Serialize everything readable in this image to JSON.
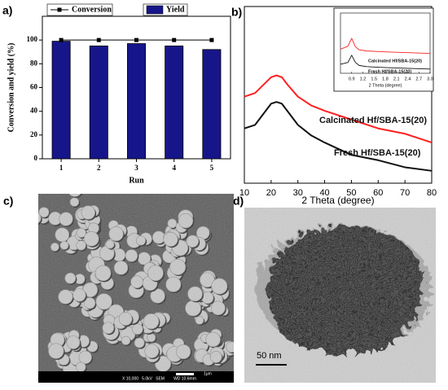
{
  "chart_data": [
    {
      "type": "bar",
      "label": "a)",
      "xlabel": "Run",
      "ylabel": "Conversion and yield (%)",
      "categories": [
        "1",
        "2",
        "3",
        "4",
        "5"
      ],
      "ylim": [
        0,
        120
      ],
      "yticks": [
        0,
        20,
        40,
        60,
        80,
        100
      ],
      "series": [
        {
          "name": "Conversion",
          "type": "line",
          "color": "#000000",
          "marker": "square",
          "values": [
            100,
            100,
            100,
            100,
            100
          ]
        },
        {
          "name": "Yield",
          "type": "bar",
          "color": "#16168a",
          "values": [
            99,
            95,
            97,
            95,
            92
          ]
        }
      ]
    },
    {
      "type": "line",
      "label": "b)",
      "xlabel": "2 Theta (degree)",
      "xlim": [
        10,
        80
      ],
      "xticks": [
        10,
        20,
        30,
        40,
        50,
        60,
        70,
        80
      ],
      "ylim": [
        0,
        100
      ],
      "x": [
        10,
        14,
        18,
        20,
        22,
        24,
        26,
        30,
        35,
        40,
        50,
        60,
        70,
        80
      ],
      "series": [
        {
          "name": "Calcinated Hf/SBA-15(20)",
          "color": "#ff2020",
          "values": [
            49,
            51,
            57,
            60,
            61,
            60,
            56,
            49,
            44,
            41,
            36,
            31,
            28,
            23
          ]
        },
        {
          "name": "Fresh Hf/SBA-15(20)",
          "color": "#111111",
          "values": [
            31,
            33,
            41,
            45,
            46,
            45,
            41,
            33,
            27,
            23,
            16,
            13,
            9,
            7
          ]
        }
      ]
    },
    {
      "type": "line",
      "xlabel": "2 Theta (degree)",
      "xlim": [
        0.6,
        3
      ],
      "xticks": [
        0.9,
        1.2,
        1.5,
        1.8,
        2.1,
        2.4,
        2.7,
        {
          "value": 3,
          "label": "3.0"
        }
      ],
      "ylim": [
        0,
        100
      ],
      "x": [
        0.6,
        0.8,
        0.9,
        1.0,
        1.1,
        1.3,
        1.6,
        2.0,
        2.5,
        3.0
      ],
      "series": [
        {
          "name": "Calcinated Hf/SBA-15(20)",
          "color": "#ff2020",
          "values": [
            40,
            45,
            58,
            44,
            39,
            37,
            36,
            35,
            34,
            33
          ]
        },
        {
          "name": "Fresh Hf/SBA-15(20)",
          "color": "#111111",
          "values": [
            15,
            18,
            30,
            18,
            13,
            11,
            10,
            9,
            8,
            7
          ]
        }
      ]
    }
  ],
  "images": [
    {
      "label": "c)",
      "scale_bar": "1μm",
      "info": "X 10,000   5.0kV   SEM        WD 10.6mm"
    },
    {
      "label": "d)",
      "scale_bar": "50 nm"
    }
  ]
}
